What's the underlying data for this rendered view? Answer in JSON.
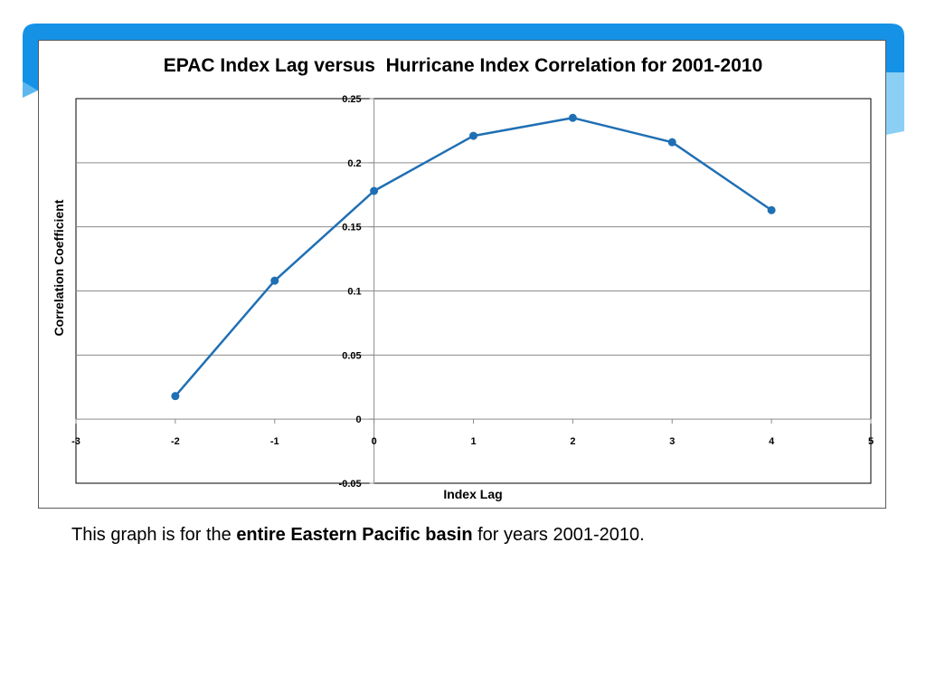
{
  "slide": {
    "caption_prefix": "This graph is for the ",
    "caption_bold": "entire Eastern Pacific basin",
    "caption_suffix": " for years 2001-2010.",
    "banner_color": "#1592e6",
    "banner_light_color": "#8ccff5"
  },
  "chart_data": {
    "type": "line",
    "title": "EPAC Index Lag versus  Hurricane Index Correlation for 2001-2010",
    "xlabel": "Index Lag",
    "ylabel": "Correlation Coefficient",
    "xlim": [
      -3,
      5
    ],
    "ylim": [
      -0.05,
      0.25
    ],
    "x_ticks": [
      -3,
      -2,
      -1,
      0,
      1,
      2,
      3,
      4,
      5
    ],
    "y_ticks": [
      -0.05,
      0,
      0.05,
      0.1,
      0.15,
      0.2,
      0.25
    ],
    "y_tick_labels": [
      "-0.05",
      "0",
      "0.05",
      "0.1",
      "0.15",
      "0.2",
      "0.25"
    ],
    "grid": "horizontal",
    "legend": "none",
    "line_color": "#1f6fb4",
    "series": [
      {
        "x": [
          -2,
          -1,
          0,
          1,
          2,
          3,
          4
        ],
        "values": [
          0.018,
          0.108,
          0.178,
          0.221,
          0.235,
          0.216,
          0.163
        ]
      }
    ]
  }
}
